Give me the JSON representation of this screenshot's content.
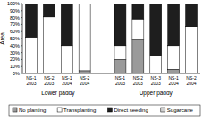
{
  "chart_data": {
    "type": "bar",
    "stacked": true,
    "y_label": "Area",
    "categories": [
      "NS-1 2003",
      "NS-2 2003",
      "NS-1 2004",
      "NS-2 2004",
      "NS-1 2003",
      "NS-2 2003",
      "NS-3 2003",
      "NS-1 2004",
      "NS-2 2004"
    ],
    "groups": [
      {
        "label": "Lower paddy",
        "size": 4
      },
      {
        "label": "Upper paddy",
        "size": 5
      }
    ],
    "series": [
      {
        "name": "No planting",
        "color": "#9a9a9a",
        "values": [
          0,
          0,
          0,
          4,
          20,
          48,
          0,
          6,
          0
        ]
      },
      {
        "name": "Transplanting",
        "color": "#ffffff",
        "values": [
          52,
          81,
          40,
          96,
          20,
          30,
          25,
          34,
          67
        ]
      },
      {
        "name": "Direct seeding",
        "color": "#1e1e1e",
        "values": [
          48,
          19,
          60,
          0,
          60,
          22,
          75,
          60,
          33
        ]
      },
      {
        "name": "Sugarcane",
        "color": "#d0d0d0",
        "values": [
          0,
          0,
          0,
          0,
          0,
          0,
          0,
          0,
          0
        ]
      }
    ],
    "ylim": [
      0,
      100
    ],
    "yticks": [
      {
        "value": 0,
        "label": "0%"
      },
      {
        "value": 10,
        "label": "10%"
      },
      {
        "value": 20,
        "label": "20%"
      },
      {
        "value": 30,
        "label": "30%"
      },
      {
        "value": 40,
        "label": "40%"
      },
      {
        "value": 50,
        "label": "50%"
      },
      {
        "value": 60,
        "label": "60%"
      },
      {
        "value": 70,
        "label": "70%"
      },
      {
        "value": 80,
        "label": "80%"
      },
      {
        "value": 90,
        "label": "90%"
      },
      {
        "value": 100,
        "label": "100%"
      }
    ],
    "legend": "bottom"
  }
}
